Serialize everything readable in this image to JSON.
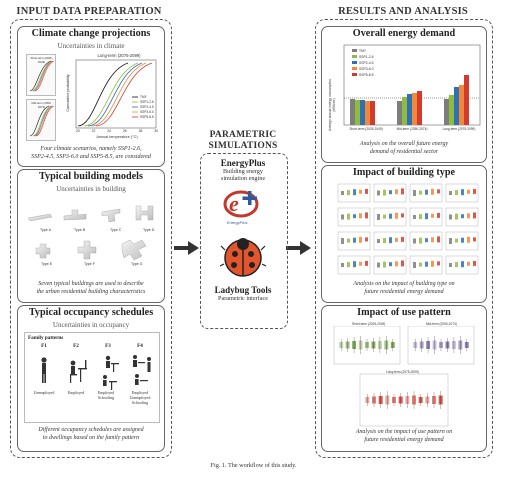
{
  "left_column": {
    "title": "INPUT DATA PREPARATION",
    "climate": {
      "title": "Climate change projections",
      "subtitle": "Uncertainties in climate",
      "chart_title_a": "Short-term (2025-2049)",
      "chart_title_b": "Mid-term (2050-2074)",
      "chart_title_main": "Long-term (2075-2099)",
      "ylabel": "Cumulative probability",
      "xlabel": "Annual temperature (°C)",
      "x_ticks": [
        "20",
        "22",
        "24",
        "26",
        "28",
        "30"
      ],
      "legend": [
        "TMY",
        "SSP1-2.6",
        "SSP2-4.5",
        "SSP3-6.0",
        "SSP5-8.5"
      ],
      "colors": [
        "#111111",
        "#8fbc3f",
        "#2f6fb6",
        "#f08a3a",
        "#d33b2f"
      ],
      "caption_line1": "Four climate scenarios, namely SSP1-2.6,",
      "caption_line2": "SSP2-4.5, SSP3-6.0 and SSP5-8.5, are considered"
    },
    "building": {
      "title": "Typical building models",
      "subtitle": "Uncertainties in building",
      "types": [
        "Type A",
        "Type B",
        "Type C",
        "Type D",
        "Type E",
        "Type F",
        "Type G"
      ],
      "caption_line1": "Seven typical buildings are used to describe",
      "caption_line2": "the urban residential building characteristics"
    },
    "occupancy": {
      "title": "Typical occupancy schedules",
      "subtitle": "Uncertainties in occupancy",
      "family_label": "Family patterns",
      "patterns": [
        {
          "id": "F1",
          "desc": "Unemployed"
        },
        {
          "id": "F2",
          "desc": "Employed"
        },
        {
          "id": "F3",
          "desc": "Employed Schooling"
        },
        {
          "id": "F4",
          "desc": "Employed Unemployed Schooling"
        }
      ],
      "caption_line1": "Different occupancy schedules are assigned",
      "caption_line2": "to dwellings based on the family pattern"
    }
  },
  "middle": {
    "title_line1": "PARAMETRIC",
    "title_line2": "SIMULATIONS",
    "energyplus_title": "EnergyPlus",
    "energyplus_sub1": "Building energy",
    "energyplus_sub2": "simulation engine",
    "energyplus_logo_text": "EnergyPlus",
    "ladybug_title": "Ladybug Tools",
    "ladybug_sub": "Parametric interface"
  },
  "right_column": {
    "title": "RESULTS AND ANALYSIS",
    "overall": {
      "title": "Overall energy demand",
      "ylabel": "Average annual energy consumption (kWh/m²)",
      "legend": [
        "TMY",
        "SSP1-2.6",
        "SSP2-4.5",
        "SSP3-6.0",
        "SSP5-8.5"
      ],
      "categories": [
        "Short-term (2025-2049)",
        "Mid-term (2050-2074)",
        "Long-term (2075-2099)"
      ],
      "caption_line1": "Analysis on the overall future energy",
      "caption_line2": "demand of residential sector"
    },
    "btype": {
      "title": "Impact of building type",
      "caption_line1": "Analysis on the impact of building type on",
      "caption_line2": "future residential energy demand"
    },
    "usepattern": {
      "title": "Impact of use pattern",
      "sub_a": "Short-term (2025-2049)",
      "sub_b": "Mid-term (2050-2074)",
      "sub_c": "Long-term (2075-2099)",
      "caption_line1": "Analysis on the impact of use pattern on",
      "caption_line2": "future residential energy demand"
    }
  },
  "figure_caption": "Fig. 1. The workflow of this study."
}
